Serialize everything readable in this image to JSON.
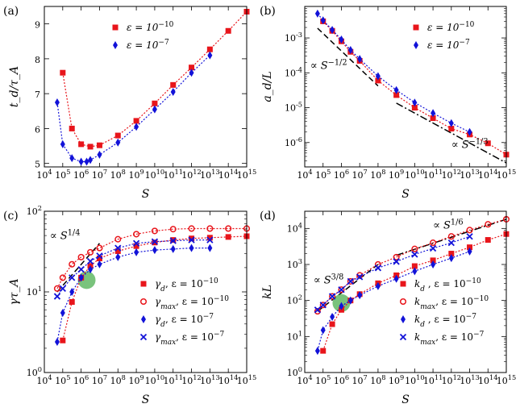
{
  "colors": {
    "red": "#e8151b",
    "blue": "#1212d8",
    "green": "#4caf50"
  },
  "chart_data": [
    {
      "panel": "(a)",
      "type": "line",
      "xscale": "log",
      "yscale": "linear",
      "xlabel": "S",
      "ylabel": "t_d/τ_A",
      "xlim": [
        10000,
        1000000000000000.0
      ],
      "ylim": [
        4.9,
        9.5
      ],
      "yticks": [
        5,
        6,
        7,
        8,
        9
      ],
      "legend_placement": "top",
      "series": [
        {
          "name": "ε = 10",
          "name_sup": "−10",
          "color": "red",
          "marker": "square",
          "x": [
            100000.0,
            316000.0,
            1000000.0,
            3160000.0,
            10000000.0,
            100000000.0,
            1000000000.0,
            10000000000.0,
            100000000000.0,
            1000000000000.0,
            10000000000000.0,
            100000000000000.0,
            1000000000000000.0
          ],
          "y": [
            7.6,
            6.0,
            5.55,
            5.48,
            5.52,
            5.8,
            6.22,
            6.72,
            7.25,
            7.75,
            8.27,
            8.8,
            9.35
          ]
        },
        {
          "name": "ε = 10",
          "name_sup": "−7",
          "color": "blue",
          "marker": "diamond",
          "x": [
            50000.0,
            100000.0,
            316000.0,
            1000000.0,
            2000000.0,
            3160000.0,
            10000000.0,
            100000000.0,
            1000000000.0,
            10000000000.0,
            100000000000.0,
            1000000000000.0,
            10000000000000.0
          ],
          "y": [
            6.75,
            5.55,
            5.15,
            5.05,
            5.05,
            5.1,
            5.25,
            5.6,
            6.05,
            6.55,
            7.05,
            7.6,
            8.1
          ]
        }
      ]
    },
    {
      "panel": "(b)",
      "type": "line",
      "xscale": "log",
      "yscale": "log",
      "xlabel": "S",
      "ylabel": "a_d/L",
      "xlim": [
        10000,
        1000000000000000.0
      ],
      "ylim": [
        2e-07,
        0.008
      ],
      "yticks": [
        1e-06,
        1e-05,
        0.0001,
        0.001
      ],
      "legend_placement": "top-right",
      "series": [
        {
          "name": "ε = 10",
          "name_sup": "−10",
          "color": "red",
          "marker": "square",
          "x": [
            100000.0,
            316000.0,
            1000000.0,
            3160000.0,
            10000000.0,
            100000000.0,
            1000000000.0,
            10000000000.0,
            100000000000.0,
            1000000000000.0,
            10000000000000.0,
            100000000000000.0,
            1000000000000000.0
          ],
          "y": [
            0.003,
            0.0016,
            0.0008,
            0.0004,
            0.00022,
            6e-05,
            2.3e-05,
            1e-05,
            5e-06,
            2.5e-06,
            1.7e-06,
            9.5e-07,
            4.5e-07
          ]
        },
        {
          "name": "ε = 10",
          "name_sup": "−7",
          "color": "blue",
          "marker": "diamond",
          "x": [
            50000.0,
            100000.0,
            316000.0,
            1000000.0,
            3160000.0,
            10000000.0,
            100000000.0,
            1000000000.0,
            10000000000.0,
            100000000000.0,
            1000000000000.0,
            10000000000000.0
          ],
          "y": [
            0.005,
            0.0032,
            0.0017,
            0.0009,
            0.00045,
            0.00025,
            8e-05,
            3.2e-05,
            1.4e-05,
            7e-06,
            3.6e-06,
            2e-06
          ]
        }
      ],
      "guides": [
        {
          "x": [
            50000.0,
            100000000.0
          ],
          "y": [
            0.0019,
            4.2e-05
          ],
          "style": "dashed"
        },
        {
          "x": [
            1000000000.0,
            1000000000000000.0
          ],
          "y": [
            1.35e-05,
            2.6e-07
          ],
          "style": "dashdot"
        }
      ],
      "annotations": [
        {
          "text": "∝ S",
          "sup": "−1/2",
          "x": 20000.0,
          "y": 0.00013
        },
        {
          "text": "∝ S",
          "sup": "−1/3",
          "x": 1000000000000.0,
          "y": 7e-07
        }
      ]
    },
    {
      "panel": "(c)",
      "type": "line",
      "xscale": "log",
      "yscale": "log",
      "xlabel": "S",
      "ylabel": "γτ_A",
      "xlim": [
        10000,
        1000000000000000.0
      ],
      "ylim": [
        1,
        100
      ],
      "yticks": [
        1,
        10,
        100
      ],
      "legend_placement": "bottom-right",
      "series": [
        {
          "name": "γ",
          "name_sub": "d",
          "name_tail": ", ε = 10",
          "name_sup": "−10",
          "color": "red",
          "marker": "square",
          "x": [
            100000.0,
            316000.0,
            1000000.0,
            3160000.0,
            10000000.0,
            100000000.0,
            1000000000.0,
            10000000000.0,
            100000000000.0,
            1000000000000.0,
            10000000000000.0,
            100000000000000.0,
            1000000000000000.0
          ],
          "y": [
            2.5,
            7.5,
            15,
            21,
            26,
            32,
            37,
            41,
            44,
            46,
            47,
            48,
            49
          ]
        },
        {
          "name": "γ",
          "name_sub": "max",
          "name_tail": ", ε = 10",
          "name_sup": "−10",
          "color": "red",
          "marker": "circle",
          "x": [
            50000.0,
            100000.0,
            316000.0,
            1000000.0,
            3160000.0,
            10000000.0,
            100000000.0,
            1000000000.0,
            10000000000.0,
            100000000000.0,
            1000000000000.0,
            10000000000000.0,
            100000000000000.0,
            1000000000000000.0
          ],
          "y": [
            11,
            15,
            22,
            27,
            31,
            35,
            45,
            52,
            57,
            60,
            61,
            61,
            61,
            61
          ]
        },
        {
          "name": "γ",
          "name_sub": "d",
          "name_tail": ", ε = 10",
          "name_sup": "−7",
          "color": "blue",
          "marker": "diamond",
          "x": [
            50000.0,
            100000.0,
            316000.0,
            1000000.0,
            3160000.0,
            10000000.0,
            100000000.0,
            1000000000.0,
            10000000000.0,
            100000000000.0,
            1000000000000.0,
            10000000000000.0
          ],
          "y": [
            2.4,
            5.5,
            10,
            15,
            19,
            22,
            27,
            31,
            33,
            34,
            35,
            35
          ]
        },
        {
          "name": "γ",
          "name_sub": "max",
          "name_tail": ", ε = 10",
          "name_sup": "−7",
          "color": "blue",
          "marker": "cross",
          "x": [
            50000.0,
            100000.0,
            316000.0,
            1000000.0,
            3160000.0,
            10000000.0,
            100000000.0,
            1000000000.0,
            10000000000.0,
            100000000000.0,
            1000000000000.0,
            10000000000000.0
          ],
          "y": [
            8.8,
            11,
            15,
            19,
            24,
            28,
            35,
            40,
            42,
            43,
            44,
            44
          ]
        }
      ],
      "guides": [
        {
          "x": [
            50000.0,
            10000000.0
          ],
          "y": [
            10,
            40
          ],
          "style": "dashed"
        }
      ],
      "annotations": [
        {
          "text": "∝ S",
          "sup": "1/4",
          "x": 20000.0,
          "y": 45
        }
      ],
      "highlight": {
        "x": 2000000.0,
        "y": 14
      }
    },
    {
      "panel": "(d)",
      "type": "line",
      "xscale": "log",
      "yscale": "log",
      "xlabel": "S",
      "ylabel": "kL",
      "xlim": [
        10000,
        1000000000000000.0
      ],
      "ylim": [
        1,
        30000
      ],
      "yticks": [
        1,
        10,
        100,
        1000,
        10000
      ],
      "legend_placement": "bottom-right",
      "series": [
        {
          "name": "k",
          "name_sub": "d",
          "name_tail": "    , ε = 10",
          "name_sup": "−10",
          "color": "red",
          "marker": "square",
          "x": [
            100000.0,
            316000.0,
            1000000.0,
            3160000.0,
            10000000.0,
            100000000.0,
            1000000000.0,
            10000000000.0,
            100000000000.0,
            1000000000000.0,
            10000000000000.0,
            100000000000000.0,
            1000000000000000.0
          ],
          "y": [
            4,
            22,
            55,
            100,
            150,
            300,
            500,
            900,
            1300,
            2000,
            3000,
            4800,
            7000
          ]
        },
        {
          "name": "k",
          "name_sub": "max",
          "name_tail": ", ε = 10",
          "name_sup": "−10",
          "color": "red",
          "marker": "circle",
          "x": [
            50000.0,
            100000.0,
            316000.0,
            1000000.0,
            3160000.0,
            10000000.0,
            100000000.0,
            1000000000.0,
            10000000000.0,
            100000000000.0,
            1000000000000.0,
            10000000000000.0,
            100000000000000.0,
            1000000000000000.0
          ],
          "y": [
            50,
            75,
            130,
            200,
            340,
            500,
            1000,
            1600,
            2700,
            4000,
            6000,
            9000,
            13000,
            18000
          ]
        },
        {
          "name": "k",
          "name_sub": "d",
          "name_tail": "    , ε = 10",
          "name_sup": "−7",
          "color": "blue",
          "marker": "diamond",
          "x": [
            50000.0,
            100000.0,
            316000.0,
            1000000.0,
            3160000.0,
            10000000.0,
            100000000.0,
            1000000000.0,
            10000000000.0,
            100000000000.0,
            1000000000000.0,
            10000000000000.0
          ],
          "y": [
            4,
            15,
            35,
            70,
            100,
            140,
            250,
            400,
            650,
            1000,
            1500,
            2300
          ]
        },
        {
          "name": "k",
          "name_sub": "max",
          "name_tail": ", ε = 10",
          "name_sup": "−7",
          "color": "blue",
          "marker": "cross",
          "x": [
            50000.0,
            100000.0,
            316000.0,
            1000000.0,
            3160000.0,
            10000000.0,
            100000000.0,
            1000000000.0,
            10000000000.0,
            100000000000.0,
            1000000000000.0,
            10000000000000.0
          ],
          "y": [
            55,
            75,
            130,
            200,
            340,
            450,
            800,
            1200,
            1900,
            2800,
            4000,
            6000
          ]
        }
      ],
      "guides": [
        {
          "x": [
            50000.0,
            100000000.0
          ],
          "y": [
            50,
            1000
          ],
          "style": "dashed"
        },
        {
          "x": [
            1000000000.0,
            1000000000000000.0
          ],
          "y": [
            1800,
            18000
          ],
          "style": "dashdot"
        }
      ],
      "annotations": [
        {
          "text": "∝ S",
          "sup": "3/8",
          "x": 30000.0,
          "y": 300
        },
        {
          "text": "∝ S",
          "sup": "1/6",
          "x": 100000000000.0,
          "y": 10000
        }
      ],
      "highlight": {
        "x": 1000000.0,
        "y": 85
      }
    }
  ]
}
